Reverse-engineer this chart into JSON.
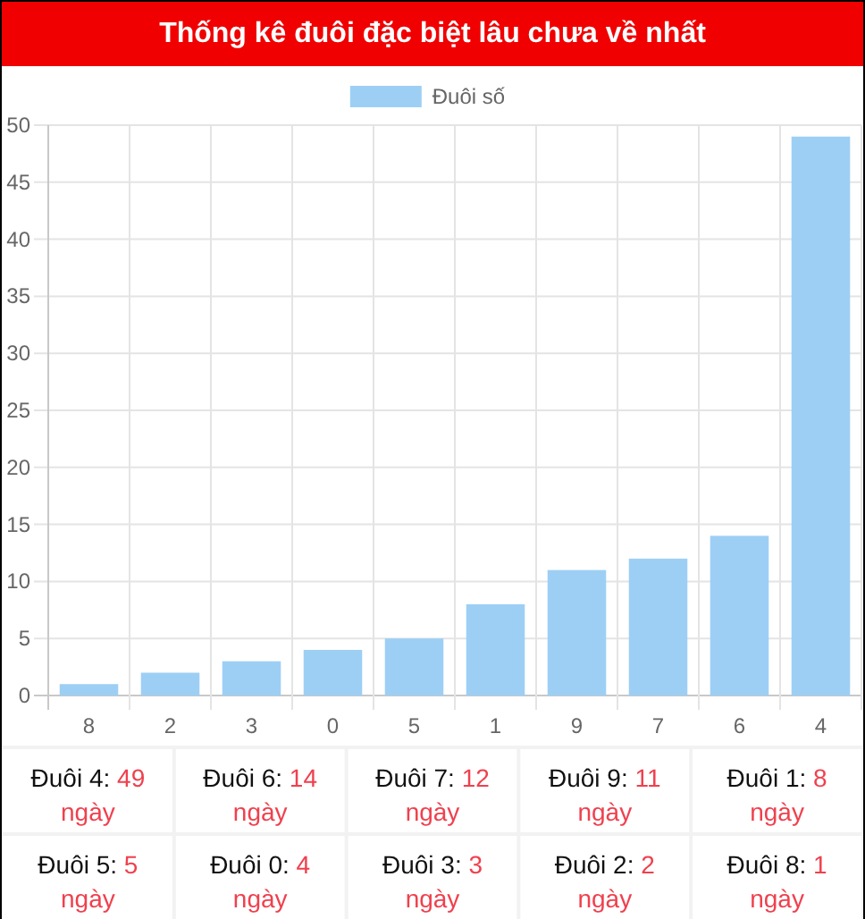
{
  "chart_data": {
    "type": "bar",
    "title": "Thống kê đuôi đặc biệt lâu chưa về nhất",
    "categories": [
      "8",
      "2",
      "3",
      "0",
      "5",
      "1",
      "9",
      "7",
      "6",
      "4"
    ],
    "series": [
      {
        "name": "Đuôi số",
        "color": "#9dcff5",
        "values": [
          1,
          2,
          3,
          4,
          5,
          8,
          11,
          12,
          14,
          49
        ]
      }
    ],
    "ylim": [
      0,
      50
    ],
    "yticks": [
      0,
      5,
      10,
      15,
      20,
      25,
      30,
      35,
      40,
      45,
      50
    ],
    "grid": true,
    "legend": "top",
    "annotations": [
      "Đuôi 4: 49 ngày",
      "Đuôi 6: 14 ngày",
      "Đuôi 7: 12 ngày",
      "Đuôi 9: 11 ngày",
      "Đuôi 1: 8 ngày",
      "Đuôi 5: 5 ngày",
      "Đuôi 0: 4 ngày",
      "Đuôi 3: 3 ngày",
      "Đuôi 2: 2 ngày",
      "Đuôi 8: 1 ngày"
    ]
  }
}
